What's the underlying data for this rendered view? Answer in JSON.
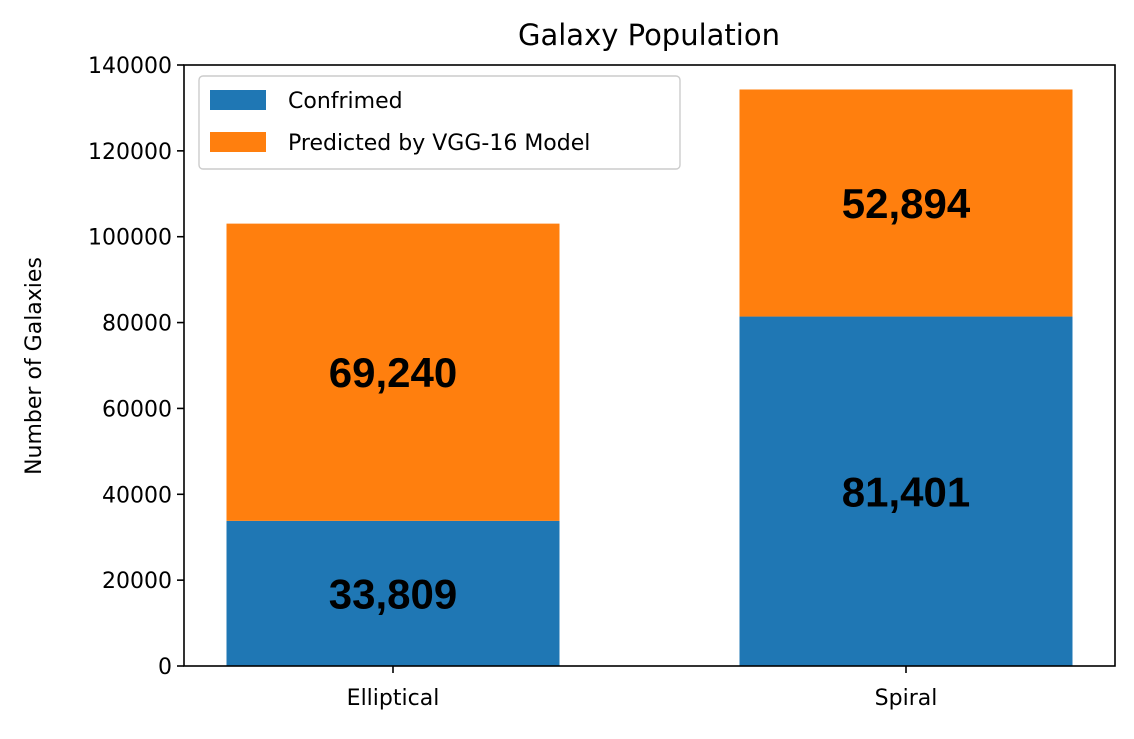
{
  "chart_data": {
    "type": "bar",
    "stacked": true,
    "title": "Galaxy Population",
    "xlabel": "",
    "ylabel": "Number of Galaxies",
    "categories": [
      "Elliptical",
      "Spiral"
    ],
    "series": [
      {
        "name": "Confrimed",
        "values": [
          33809,
          81401
        ],
        "labels": [
          "33,809",
          "81,401"
        ],
        "color": "#1f77b4"
      },
      {
        "name": "Predicted by VGG-16 Model",
        "values": [
          69240,
          52894
        ],
        "labels": [
          "69,240",
          "52,894"
        ],
        "color": "#ff7f0e"
      }
    ],
    "ylim": [
      0,
      140000
    ],
    "yticks": [
      0,
      20000,
      40000,
      60000,
      80000,
      100000,
      120000,
      140000
    ],
    "ytick_labels": [
      "0",
      "20000",
      "40000",
      "60000",
      "80000",
      "100000",
      "120000",
      "140000"
    ],
    "grid": false,
    "legend_position": "top-left"
  }
}
